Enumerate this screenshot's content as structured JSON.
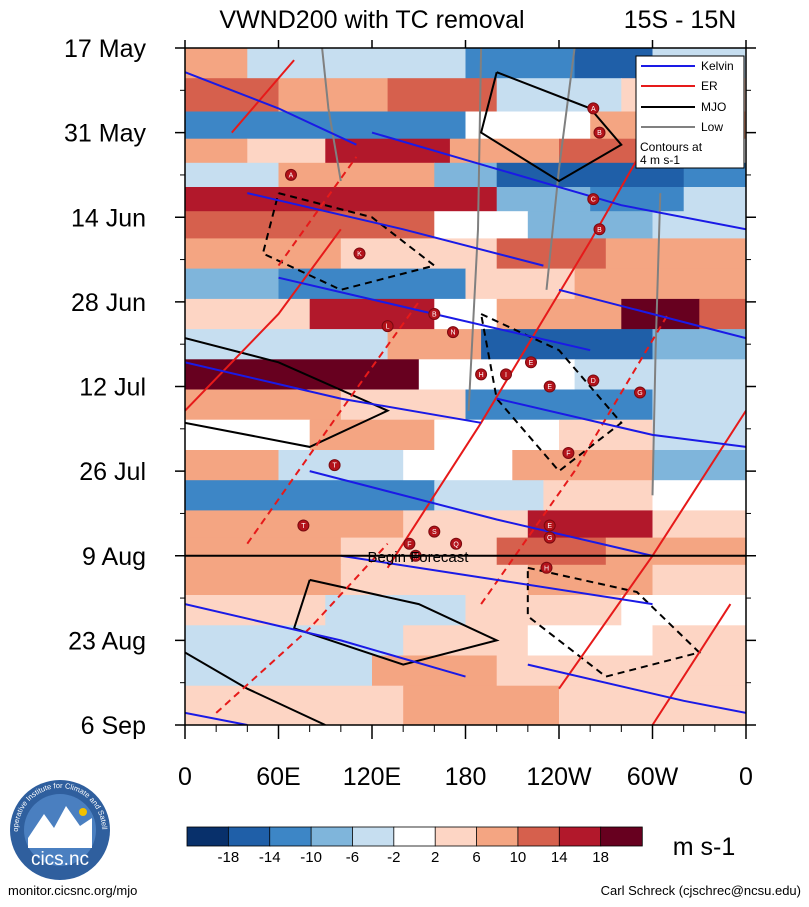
{
  "chart_data": {
    "type": "heatmap",
    "title_left": "VWND200 with TC removal",
    "title_right": "15S - 15N",
    "x_ticks": [
      "0",
      "60E",
      "120E",
      "180",
      "120W",
      "60W",
      "0"
    ],
    "x_range_deg": [
      0,
      360
    ],
    "y_ticks": [
      "17 May",
      "31 May",
      "14 Jun",
      "28 Jun",
      "12 Jul",
      "26 Jul",
      "9 Aug",
      "23 Aug",
      "6 Sep"
    ],
    "y_range_days": [
      0,
      112
    ],
    "forecast_start_day": 84,
    "forecast_label": "Begin Forecast",
    "legend": {
      "items": [
        {
          "label": "Kelvin",
          "color": "#1a1ae6"
        },
        {
          "label": "ER",
          "color": "#e61a1a"
        },
        {
          "label": "MJO",
          "color": "#000000"
        },
        {
          "label": "Low",
          "color": "#808080"
        }
      ],
      "note_line1": "Contours at",
      "note_line2": "4 m s-1"
    },
    "colorbar": {
      "levels": [
        "-18",
        "-14",
        "-10",
        "-6",
        "-2",
        "2",
        "6",
        "10",
        "14",
        "18"
      ],
      "colors": [
        "#08306b",
        "#1f5fa8",
        "#3d86c6",
        "#7fb5db",
        "#c6def0",
        "#ffffff",
        "#fdd5c4",
        "#f4a582",
        "#d6604d",
        "#b2182b",
        "#67001f"
      ],
      "units": "m s-1"
    },
    "bands": [
      {
        "day": 2,
        "segments": [
          [
            0,
            40,
            6
          ],
          [
            40,
            180,
            -6
          ],
          [
            180,
            250,
            -14
          ],
          [
            250,
            300,
            -18
          ],
          [
            300,
            360,
            -6
          ]
        ]
      },
      {
        "day": 8,
        "segments": [
          [
            0,
            60,
            10
          ],
          [
            60,
            130,
            6
          ],
          [
            130,
            200,
            10
          ],
          [
            200,
            280,
            -6
          ],
          [
            280,
            360,
            2
          ]
        ]
      },
      {
        "day": 13,
        "segments": [
          [
            0,
            180,
            -14
          ],
          [
            180,
            260,
            -2
          ],
          [
            260,
            360,
            6
          ]
        ]
      },
      {
        "day": 17,
        "segments": [
          [
            0,
            40,
            6
          ],
          [
            40,
            90,
            2
          ],
          [
            90,
            170,
            14
          ],
          [
            170,
            240,
            6
          ],
          [
            240,
            300,
            10
          ],
          [
            300,
            360,
            -2
          ]
        ]
      },
      {
        "day": 21,
        "segments": [
          [
            0,
            60,
            -6
          ],
          [
            60,
            160,
            6
          ],
          [
            160,
            200,
            -10
          ],
          [
            200,
            320,
            -18
          ],
          [
            320,
            360,
            -14
          ]
        ]
      },
      {
        "day": 25,
        "segments": [
          [
            0,
            200,
            14
          ],
          [
            200,
            260,
            -10
          ],
          [
            260,
            320,
            -14
          ],
          [
            320,
            360,
            -6
          ]
        ]
      },
      {
        "day": 29,
        "segments": [
          [
            0,
            160,
            10
          ],
          [
            160,
            220,
            -2
          ],
          [
            220,
            300,
            -10
          ],
          [
            300,
            360,
            -6
          ]
        ]
      },
      {
        "day": 34,
        "segments": [
          [
            0,
            100,
            6
          ],
          [
            100,
            200,
            2
          ],
          [
            200,
            270,
            10
          ],
          [
            270,
            360,
            6
          ]
        ]
      },
      {
        "day": 39,
        "segments": [
          [
            0,
            60,
            -10
          ],
          [
            60,
            180,
            -14
          ],
          [
            180,
            250,
            2
          ],
          [
            250,
            360,
            6
          ]
        ]
      },
      {
        "day": 44,
        "segments": [
          [
            0,
            80,
            2
          ],
          [
            80,
            160,
            14
          ],
          [
            160,
            200,
            -2
          ],
          [
            200,
            280,
            6
          ],
          [
            280,
            330,
            18
          ],
          [
            330,
            360,
            10
          ]
        ]
      },
      {
        "day": 49,
        "segments": [
          [
            0,
            130,
            -6
          ],
          [
            130,
            190,
            6
          ],
          [
            190,
            300,
            -18
          ],
          [
            300,
            360,
            -10
          ]
        ]
      },
      {
        "day": 54,
        "segments": [
          [
            0,
            150,
            18
          ],
          [
            150,
            250,
            -2
          ],
          [
            250,
            360,
            -6
          ]
        ]
      },
      {
        "day": 59,
        "segments": [
          [
            0,
            100,
            6
          ],
          [
            100,
            180,
            2
          ],
          [
            180,
            300,
            -14
          ],
          [
            300,
            360,
            -6
          ]
        ]
      },
      {
        "day": 64,
        "segments": [
          [
            0,
            80,
            -2
          ],
          [
            80,
            160,
            6
          ],
          [
            160,
            240,
            -2
          ],
          [
            240,
            300,
            2
          ],
          [
            300,
            360,
            -6
          ]
        ]
      },
      {
        "day": 69,
        "segments": [
          [
            0,
            60,
            6
          ],
          [
            60,
            140,
            -6
          ],
          [
            140,
            210,
            -2
          ],
          [
            210,
            300,
            6
          ],
          [
            300,
            360,
            -10
          ]
        ]
      },
      {
        "day": 74,
        "segments": [
          [
            0,
            160,
            -14
          ],
          [
            160,
            230,
            -6
          ],
          [
            230,
            300,
            2
          ],
          [
            300,
            360,
            -2
          ]
        ]
      },
      {
        "day": 79,
        "segments": [
          [
            0,
            140,
            6
          ],
          [
            140,
            220,
            2
          ],
          [
            220,
            300,
            14
          ],
          [
            300,
            360,
            2
          ]
        ]
      },
      {
        "day": 83,
        "segments": [
          [
            0,
            100,
            6
          ],
          [
            100,
            200,
            2
          ],
          [
            200,
            270,
            10
          ],
          [
            270,
            360,
            6
          ]
        ]
      },
      {
        "day": 88,
        "segments": [
          [
            0,
            100,
            6
          ],
          [
            100,
            220,
            2
          ],
          [
            220,
            300,
            6
          ],
          [
            300,
            360,
            2
          ]
        ]
      },
      {
        "day": 93,
        "segments": [
          [
            0,
            90,
            2
          ],
          [
            90,
            180,
            -6
          ],
          [
            180,
            280,
            2
          ],
          [
            280,
            360,
            -2
          ]
        ]
      },
      {
        "day": 98,
        "segments": [
          [
            0,
            140,
            -6
          ],
          [
            140,
            220,
            2
          ],
          [
            220,
            300,
            -2
          ],
          [
            300,
            360,
            2
          ]
        ]
      },
      {
        "day": 103,
        "segments": [
          [
            0,
            120,
            -6
          ],
          [
            120,
            200,
            6
          ],
          [
            200,
            360,
            2
          ]
        ]
      },
      {
        "day": 108,
        "segments": [
          [
            0,
            140,
            2
          ],
          [
            140,
            240,
            6
          ],
          [
            240,
            360,
            2
          ]
        ]
      }
    ],
    "kelvin_lines": [
      [
        [
          0,
          4
        ],
        [
          60,
          10
        ],
        [
          110,
          16
        ]
      ],
      [
        [
          120,
          14
        ],
        [
          200,
          20
        ],
        [
          280,
          26
        ],
        [
          360,
          30
        ]
      ],
      [
        [
          40,
          24
        ],
        [
          140,
          30
        ],
        [
          230,
          36
        ]
      ],
      [
        [
          240,
          40
        ],
        [
          330,
          46
        ],
        [
          360,
          48
        ]
      ],
      [
        [
          60,
          38
        ],
        [
          160,
          44
        ],
        [
          260,
          50
        ]
      ],
      [
        [
          0,
          52
        ],
        [
          100,
          58
        ],
        [
          190,
          62
        ]
      ],
      [
        [
          200,
          58
        ],
        [
          300,
          64
        ],
        [
          360,
          66
        ]
      ],
      [
        [
          80,
          70
        ],
        [
          200,
          78
        ],
        [
          300,
          84
        ]
      ],
      [
        [
          100,
          84
        ],
        [
          200,
          88
        ],
        [
          300,
          92
        ]
      ],
      [
        [
          0,
          92
        ],
        [
          100,
          98
        ],
        [
          180,
          104
        ]
      ],
      [
        [
          220,
          102
        ],
        [
          320,
          108
        ],
        [
          360,
          110
        ]
      ],
      [
        [
          0,
          110
        ],
        [
          40,
          112
        ]
      ]
    ],
    "er_lines": [
      [
        [
          30,
          14
        ],
        [
          70,
          2
        ]
      ],
      [
        [
          60,
          36
        ],
        [
          110,
          18
        ]
      ],
      [
        [
          0,
          60
        ],
        [
          60,
          44
        ],
        [
          100,
          30
        ]
      ],
      [
        [
          40,
          82
        ],
        [
          100,
          60
        ],
        [
          150,
          42
        ]
      ],
      [
        [
          130,
          86
        ],
        [
          190,
          62
        ],
        [
          260,
          32
        ],
        [
          300,
          14
        ]
      ],
      [
        [
          190,
          92
        ],
        [
          250,
          70
        ],
        [
          310,
          44
        ]
      ],
      [
        [
          240,
          106
        ],
        [
          300,
          84
        ],
        [
          360,
          60
        ]
      ],
      [
        [
          20,
          110
        ],
        [
          80,
          96
        ],
        [
          130,
          82
        ]
      ],
      [
        [
          300,
          112
        ],
        [
          350,
          92
        ]
      ]
    ],
    "mjo_lines": [
      [
        [
          200,
          4
        ],
        [
          260,
          10
        ],
        [
          280,
          16
        ],
        [
          240,
          22
        ],
        [
          190,
          14
        ],
        [
          200,
          4
        ]
      ],
      [
        [
          60,
          24
        ],
        [
          120,
          28
        ],
        [
          160,
          36
        ],
        [
          100,
          40
        ],
        [
          50,
          34
        ],
        [
          60,
          24
        ]
      ],
      [
        [
          0,
          48
        ],
        [
          60,
          52
        ],
        [
          130,
          60
        ],
        [
          80,
          66
        ],
        [
          0,
          62
        ]
      ],
      [
        [
          190,
          44
        ],
        [
          240,
          50
        ],
        [
          280,
          62
        ],
        [
          240,
          70
        ],
        [
          200,
          58
        ],
        [
          190,
          44
        ]
      ],
      [
        [
          80,
          88
        ],
        [
          150,
          92
        ],
        [
          200,
          98
        ],
        [
          140,
          102
        ],
        [
          70,
          96
        ],
        [
          80,
          88
        ]
      ],
      [
        [
          220,
          86
        ],
        [
          290,
          90
        ],
        [
          330,
          100
        ],
        [
          270,
          104
        ],
        [
          220,
          94
        ],
        [
          220,
          86
        ]
      ],
      [
        [
          0,
          100
        ],
        [
          40,
          106
        ],
        [
          90,
          112
        ]
      ]
    ],
    "low_lines": [
      [
        [
          88,
          0
        ],
        [
          92,
          10
        ],
        [
          100,
          22
        ]
      ],
      [
        [
          190,
          0
        ],
        [
          188,
          30
        ],
        [
          182,
          60
        ]
      ],
      [
        [
          250,
          0
        ],
        [
          240,
          20
        ],
        [
          232,
          40
        ]
      ],
      [
        [
          305,
          24
        ],
        [
          302,
          50
        ],
        [
          300,
          74
        ]
      ]
    ],
    "storms": [
      {
        "lon": 68,
        "day": 21,
        "label": "A"
      },
      {
        "lon": 112,
        "day": 34,
        "label": "K"
      },
      {
        "lon": 130,
        "day": 46,
        "label": "L"
      },
      {
        "lon": 160,
        "day": 44,
        "label": "B"
      },
      {
        "lon": 172,
        "day": 47,
        "label": "N"
      },
      {
        "lon": 190,
        "day": 54,
        "label": "H"
      },
      {
        "lon": 206,
        "day": 54,
        "label": "I"
      },
      {
        "lon": 222,
        "day": 52,
        "label": "E"
      },
      {
        "lon": 234,
        "day": 56,
        "label": "E"
      },
      {
        "lon": 262,
        "day": 10,
        "label": "A"
      },
      {
        "lon": 266,
        "day": 14,
        "label": "B"
      },
      {
        "lon": 262,
        "day": 25,
        "label": "C"
      },
      {
        "lon": 266,
        "day": 30,
        "label": "B"
      },
      {
        "lon": 262,
        "day": 55,
        "label": "D"
      },
      {
        "lon": 292,
        "day": 57,
        "label": "G"
      },
      {
        "lon": 246,
        "day": 67,
        "label": "F"
      },
      {
        "lon": 96,
        "day": 69,
        "label": "T"
      },
      {
        "lon": 76,
        "day": 79,
        "label": "T"
      },
      {
        "lon": 160,
        "day": 80,
        "label": "S"
      },
      {
        "lon": 144,
        "day": 82,
        "label": "F"
      },
      {
        "lon": 148,
        "day": 84,
        "label": "M"
      },
      {
        "lon": 174,
        "day": 82,
        "label": "Q"
      },
      {
        "lon": 234,
        "day": 79,
        "label": "E"
      },
      {
        "lon": 234,
        "day": 81,
        "label": "G"
      },
      {
        "lon": 232,
        "day": 86,
        "label": "H"
      }
    ]
  },
  "footer": {
    "logo_text": "cics.nc",
    "logo_ring_text": "Cooperative Institute for Climate and Satellites",
    "left_url": "monitor.cicsnc.org/mjo",
    "right_credit": "Carl Schreck (cjschrec@ncsu.edu)"
  }
}
